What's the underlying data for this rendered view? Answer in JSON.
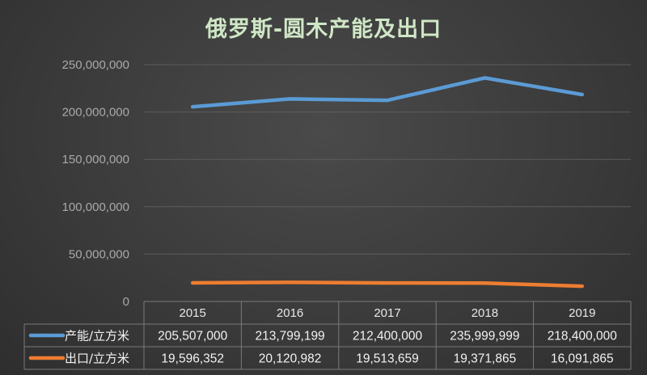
{
  "chart_data": {
    "type": "line",
    "title": "俄罗斯-圆木产能及出口",
    "categories": [
      "2015",
      "2016",
      "2017",
      "2018",
      "2019"
    ],
    "ylim": [
      0,
      250000000
    ],
    "yticks": [
      0,
      50000000,
      100000000,
      150000000,
      200000000,
      250000000
    ],
    "ytick_labels": [
      "0",
      "50,000,000",
      "100,000,000",
      "150,000,000",
      "200,000,000",
      "250,000,000"
    ],
    "grid": true,
    "legend": "data-table",
    "series": [
      {
        "name": "产能/立方米",
        "color": "#5b9bd5",
        "values": [
          205507000,
          213799199,
          212400000,
          235999999,
          218400000
        ],
        "labels": [
          "205,507,000",
          "213,799,199",
          "212,400,000",
          "235,999,999",
          "218,400,000"
        ]
      },
      {
        "name": "出口/立方米",
        "color": "#ed7d31",
        "values": [
          19596352,
          20120982,
          19513659,
          19371865,
          16091865
        ],
        "labels": [
          "19,596,352",
          "20,120,982",
          "19,513,659",
          "19,371,865",
          "16,091,865"
        ]
      }
    ]
  }
}
